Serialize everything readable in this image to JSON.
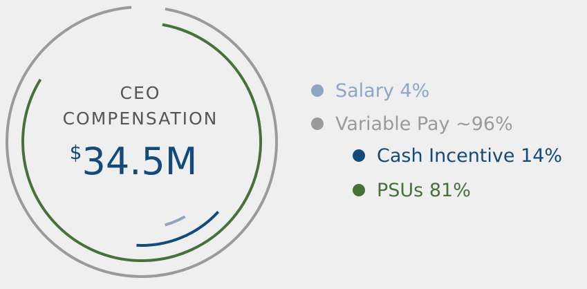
{
  "chart_data": {
    "type": "arcs",
    "center_title": [
      "CEO",
      "COMPENSATION"
    ],
    "total_currency": "$",
    "total_text": "34.5M",
    "series": [
      {
        "name": "Salary",
        "color": "#8ea6c4",
        "values": [
          4
        ],
        "value_labels": [
          "4%"
        ]
      },
      {
        "name": "Variable Pay",
        "color": "#9a9a9c",
        "values": [
          96
        ],
        "value_labels": [
          "~96%"
        ]
      },
      {
        "name": "Cash Incentive",
        "color": "#134a7c",
        "values": [
          14
        ],
        "value_labels": [
          "14%"
        ]
      },
      {
        "name": "PSUs",
        "color": "#46723a",
        "values": [
          81
        ],
        "value_labels": [
          "81%"
        ]
      }
    ]
  }
}
